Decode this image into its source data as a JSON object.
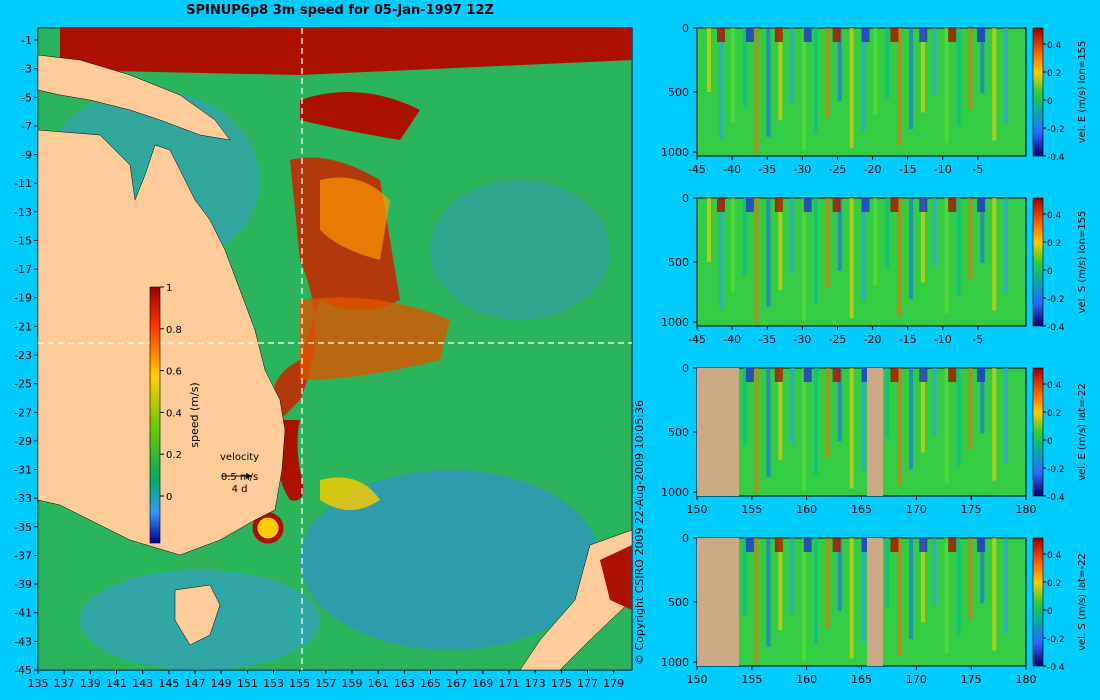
{
  "title": "SPINUP6p8 3m speed for 05-Jan-1997 12Z",
  "copyright": "© Copyright CSIRO 2009  22-Aug-2009 10:05:36",
  "map": {
    "lon_labels": [
      "135",
      "137",
      "139",
      "141",
      "143",
      "145",
      "147",
      "149",
      "151",
      "153",
      "155",
      "157",
      "159",
      "161",
      "163",
      "165",
      "167",
      "169",
      "171",
      "173",
      "175",
      "177",
      "179"
    ],
    "lat_labels": [
      "-1",
      "-3",
      "-5",
      "-7",
      "-9",
      "-11",
      "-13",
      "-15",
      "-17",
      "-19",
      "-21",
      "-23",
      "-25",
      "-27",
      "-29",
      "-31",
      "-33",
      "-35",
      "-37",
      "-39",
      "-41",
      "-43",
      "-45"
    ],
    "section_lon": 155,
    "section_lat": -22,
    "colorbar": {
      "label": "speed (m/s)",
      "ticks": [
        "1",
        "0.8",
        "0.6",
        "0.4",
        "0.2",
        "0"
      ],
      "colors": [
        "#990000",
        "#ff3300",
        "#ffcc00",
        "#66cc00",
        "#00aa66",
        "#3399ff",
        "#000099"
      ]
    },
    "velocity_key": {
      "title": "velocity",
      "speed": "0.5 m/s",
      "time": "4 d"
    },
    "land_color": "#ffcc99",
    "ocean_color": "#33bb66"
  },
  "panels": [
    {
      "label": "vel. E (m/s) lon=155",
      "x_ticks": [
        "-45",
        "-40",
        "-35",
        "-30",
        "-25",
        "-20",
        "-15",
        "-10",
        "-5"
      ],
      "y_ticks": [
        "0",
        "500",
        "1000"
      ],
      "cb_ticks": [
        "0.4",
        "0.2",
        "0",
        "-0.2",
        "-0.4"
      ]
    },
    {
      "label": "vel. S (m/s) lon=155",
      "x_ticks": [
        "-45",
        "-40",
        "-35",
        "-30",
        "-25",
        "-20",
        "-15",
        "-10",
        "-5"
      ],
      "y_ticks": [
        "0",
        "500",
        "1000"
      ],
      "cb_ticks": [
        "0.4",
        "0.2",
        "0",
        "-0.2",
        "-0.4"
      ]
    },
    {
      "label": "vel. E (m/s) lat=-22",
      "x_ticks": [
        "150",
        "155",
        "160",
        "165",
        "170",
        "175",
        "180"
      ],
      "y_ticks": [
        "0",
        "500",
        "1000"
      ],
      "cb_ticks": [
        "0.4",
        "0.2",
        "0",
        "-0.2",
        "-0.4"
      ]
    },
    {
      "label": "vel. S (m/s) lat=-22",
      "x_ticks": [
        "150",
        "155",
        "160",
        "165",
        "170",
        "175",
        "180"
      ],
      "y_ticks": [
        "0",
        "500",
        "1000"
      ],
      "cb_ticks": [
        "0.4",
        "0.2",
        "0",
        "-0.2",
        "-0.4"
      ]
    }
  ]
}
